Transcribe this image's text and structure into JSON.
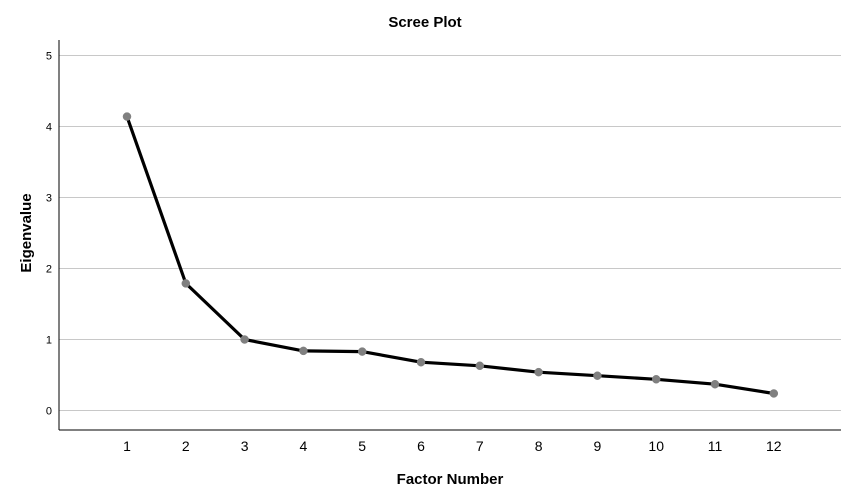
{
  "chart_data": {
    "type": "line",
    "title": "Scree Plot",
    "xlabel": "Factor Number",
    "ylabel": "Eigenvalue",
    "x": [
      1,
      2,
      3,
      4,
      5,
      6,
      7,
      8,
      9,
      10,
      11,
      12
    ],
    "series": [
      {
        "values": [
          4.14,
          1.79,
          1.0,
          0.84,
          0.83,
          0.68,
          0.63,
          0.54,
          0.49,
          0.44,
          0.37,
          0.24
        ]
      }
    ],
    "ylim": [
      0,
      5
    ],
    "yticks": [
      0,
      1,
      2,
      3,
      4,
      5
    ],
    "grid": true,
    "legend": "none",
    "colors": {
      "line": "#000000",
      "marker": "#808080",
      "grid": "#c8c8c8",
      "axis": "#000000"
    }
  }
}
